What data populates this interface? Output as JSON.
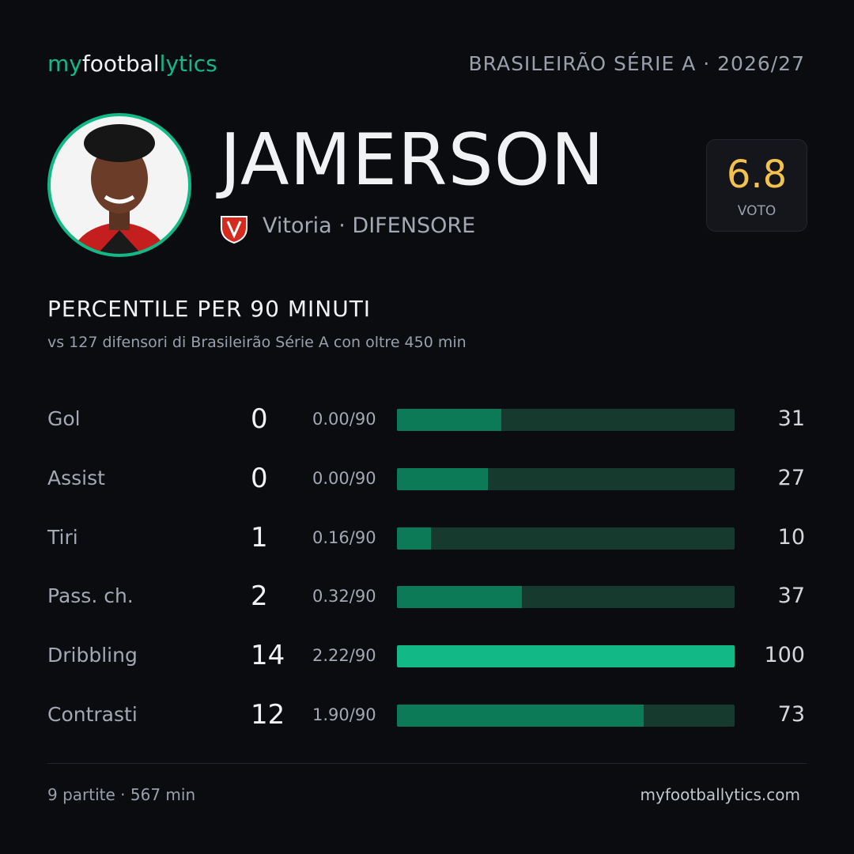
{
  "header": {
    "brand": {
      "my": "my",
      "football": "footbal",
      "lytics": "lytics"
    },
    "competition": "BRASILEIRÃO SÉRIE A · 2026/27"
  },
  "player": {
    "name": "JAMERSON",
    "team": "Vitoria",
    "position": "· DIFENSORE"
  },
  "rating": {
    "value": 6.8,
    "label": "VOTO"
  },
  "section": {
    "title": "PERCENTILE PER 90 MINUTI",
    "subtitle": "vs 127 difensori di Brasileirão Série A con oltre 450 min"
  },
  "stats": [
    {
      "label": "Gol",
      "total": 0,
      "per90": "0.00/90",
      "percentile": 31,
      "color": "#0d7a57"
    },
    {
      "label": "Assist",
      "total": 0,
      "per90": "0.00/90",
      "percentile": 27,
      "color": "#0d7a57"
    },
    {
      "label": "Tiri",
      "total": 1,
      "per90": "0.16/90",
      "percentile": 10,
      "color": "#0d7a57"
    },
    {
      "label": "Pass. ch.",
      "total": 2,
      "per90": "0.32/90",
      "percentile": 37,
      "color": "#0d7a57"
    },
    {
      "label": "Dribbling",
      "total": 14,
      "per90": "2.22/90",
      "percentile": 100,
      "color": "#12b886"
    },
    {
      "label": "Contrasti",
      "total": 12,
      "per90": "1.90/90",
      "percentile": 73,
      "color": "#0d7a57"
    }
  ],
  "footer": {
    "summary": "9 partite · 567 min",
    "site": "myfootballytics.com"
  }
}
